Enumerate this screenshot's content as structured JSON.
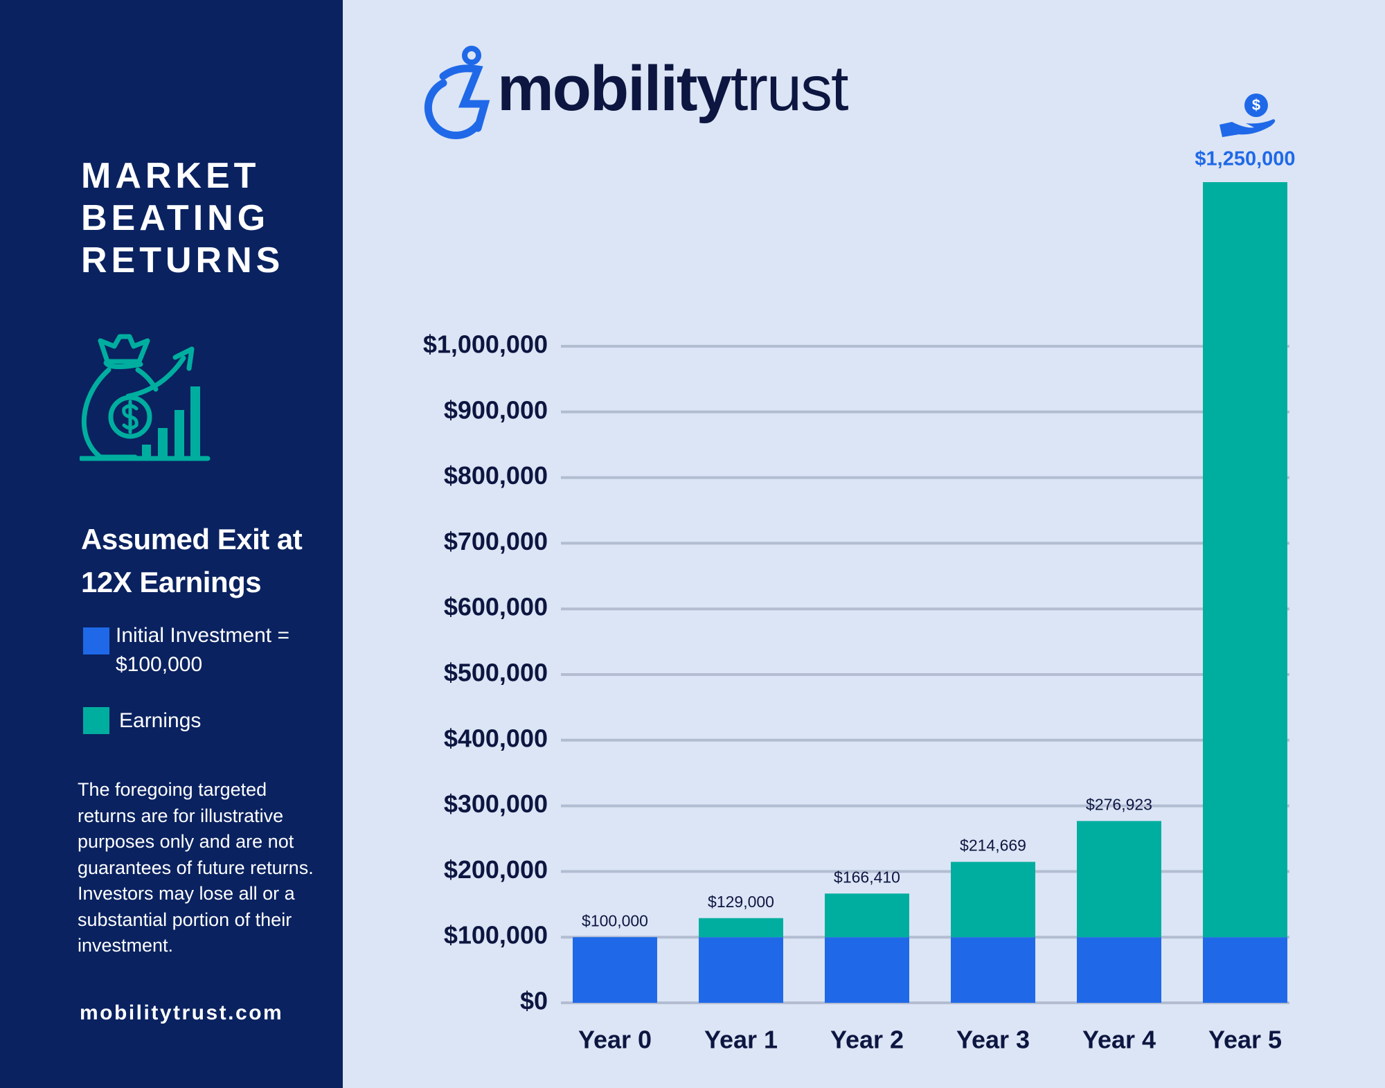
{
  "brand": {
    "logo_bold": "mobility",
    "logo_light": "trust",
    "website": "mobilitytrust.com"
  },
  "sidebar": {
    "headline": "MARKET BEATING RETURNS",
    "subhead": "Assumed Exit at 12X Earnings",
    "disclaimer": "The foregoing targeted returns are for illustrative purposes only and are not guarantees of future returns. Investors may lose all or a substantial portion of their investment."
  },
  "chart_data": {
    "type": "stacked_bar",
    "categories": [
      "Year 0",
      "Year 1",
      "Year 2",
      "Year 3",
      "Year 4",
      "Year 5"
    ],
    "series": [
      {
        "name": "Initial Investment = $100,000",
        "color": "#1f69e8",
        "values": [
          100000,
          100000,
          100000,
          100000,
          100000,
          100000
        ]
      },
      {
        "name": "Earnings",
        "color": "#00ae9f",
        "values": [
          0,
          29000,
          66410,
          114669,
          176923,
          1150000
        ]
      }
    ],
    "totals": {
      "values": [
        100000,
        129000,
        166410,
        214669,
        276923,
        1250000
      ],
      "value_labels": [
        "$100,000",
        "$129,000",
        "$166,410",
        "$214,669",
        "$276,923",
        "$1,250,000"
      ]
    },
    "ylim": [
      0,
      1250000
    ],
    "yticks": [
      {
        "value": 0,
        "label": "$0"
      },
      {
        "value": 100000,
        "label": "$100,000"
      },
      {
        "value": 200000,
        "label": "$200,000"
      },
      {
        "value": 300000,
        "label": "$300,000"
      },
      {
        "value": 400000,
        "label": "$400,000"
      },
      {
        "value": 500000,
        "label": "$500,000"
      },
      {
        "value": 600000,
        "label": "$600,000"
      },
      {
        "value": 700000,
        "label": "$700,000"
      },
      {
        "value": 800000,
        "label": "$800,000"
      },
      {
        "value": 900000,
        "label": "$900,000"
      },
      {
        "value": 1000000,
        "label": "$1,000,000"
      }
    ],
    "grid": true
  }
}
